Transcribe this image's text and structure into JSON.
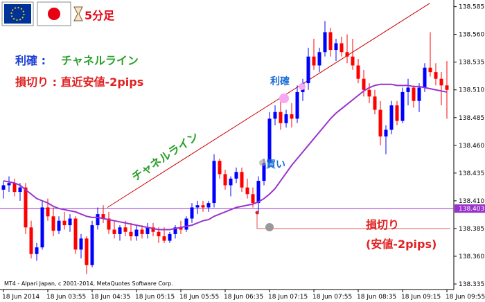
{
  "header": {
    "timeframe": "5分足"
  },
  "chart_data": {
    "type": "candlestick",
    "categories": [
      "18 Jun 2014",
      null,
      null,
      null,
      null,
      null,
      null,
      null,
      "18 Jun 03:55",
      null,
      null,
      null,
      null,
      null,
      null,
      null,
      "18 Jun 04:35",
      null,
      null,
      null,
      null,
      null,
      null,
      null,
      "18 Jun 05:15",
      null,
      null,
      null,
      null,
      null,
      null,
      null,
      "18 Jun 05:55",
      null,
      null,
      null,
      null,
      null,
      null,
      null,
      "18 Jun 06:35",
      null,
      null,
      null,
      null,
      null,
      null,
      null,
      "18 Jun 07:15",
      null,
      null,
      null,
      null,
      null,
      null,
      null,
      "18 Jun 07:55",
      null,
      null,
      null,
      null,
      null,
      null,
      null,
      "18 Jun 08:35",
      null,
      null,
      null,
      null,
      null,
      null,
      null,
      "18 Jun 09:15",
      null,
      null,
      null,
      null,
      null,
      null,
      null,
      "18 Jun 09:55"
    ],
    "open": [
      138.42,
      138.424,
      138.426,
      138.418,
      138.422,
      138.386,
      138.362,
      138.368,
      138.404,
      138.396,
      138.383,
      138.392,
      138.388,
      138.394,
      138.366,
      138.376,
      138.352,
      138.388,
      138.398,
      138.394,
      138.384,
      138.38,
      138.386,
      138.382,
      138.378,
      138.384,
      138.38,
      138.386,
      138.382,
      138.378,
      138.374,
      138.38,
      138.386,
      138.384,
      138.394,
      138.404,
      138.406,
      138.404,
      138.408,
      138.446,
      138.434,
      138.424,
      138.43,
      138.436,
      138.422,
      138.416,
      138.408,
      138.428,
      138.444,
      138.484,
      138.49,
      138.48,
      138.488,
      138.484,
      138.508,
      138.516,
      138.54,
      138.532,
      138.544,
      138.562,
      138.546,
      138.552,
      138.544,
      138.54,
      138.532,
      138.52,
      138.51,
      138.504,
      138.492,
      138.468,
      138.474,
      138.496,
      138.482,
      138.508,
      138.512,
      138.5,
      138.512,
      138.53,
      138.526,
      138.52,
      138.514
    ],
    "high": [
      138.428,
      138.432,
      138.43,
      138.426,
      138.426,
      138.392,
      138.372,
      138.41,
      138.412,
      138.404,
      138.396,
      138.4,
      138.398,
      138.396,
      138.38,
      138.378,
      138.392,
      138.404,
      138.406,
      138.4,
      138.392,
      138.388,
      138.392,
      138.39,
      138.388,
      138.388,
      138.39,
      138.39,
      138.386,
      138.386,
      138.382,
      138.388,
      138.392,
      138.396,
      138.408,
      138.41,
      138.41,
      138.41,
      138.452,
      138.448,
      138.438,
      138.432,
      138.44,
      138.44,
      138.43,
      138.422,
      138.432,
      138.448,
      138.49,
      138.496,
      138.5,
      138.492,
      138.498,
      138.514,
      138.52,
      138.548,
      138.556,
      138.548,
      138.572,
      138.566,
      138.556,
      138.558,
      138.56,
      138.556,
      138.538,
      138.528,
      138.516,
      138.51,
      138.5,
      138.478,
      138.5,
      138.5,
      138.512,
      138.52,
      138.514,
      138.516,
      138.534,
      138.562,
      138.534,
      138.526,
      138.536
    ],
    "low": [
      138.412,
      138.418,
      138.414,
      138.41,
      138.38,
      138.358,
      138.356,
      138.366,
      138.392,
      138.378,
      138.38,
      138.384,
      138.382,
      138.362,
      138.358,
      138.344,
      138.35,
      138.384,
      138.39,
      138.38,
      138.376,
      138.374,
      138.378,
      138.374,
      138.374,
      138.376,
      138.376,
      138.378,
      138.372,
      138.372,
      138.372,
      138.376,
      138.38,
      138.382,
      138.39,
      138.398,
      138.4,
      138.4,
      138.404,
      138.43,
      138.42,
      138.414,
      138.426,
      138.418,
      138.412,
      138.404,
      138.398,
      138.424,
      138.44,
      138.478,
      138.474,
      138.476,
      138.476,
      138.48,
      138.5,
      138.51,
      138.528,
      138.526,
      138.54,
      138.54,
      138.536,
      138.54,
      138.534,
      138.528,
      138.516,
      138.504,
      138.498,
      138.488,
      138.46,
      138.452,
      138.47,
      138.478,
      138.48,
      138.496,
      138.494,
      138.49,
      138.508,
      138.522,
      138.514,
      138.496,
      138.484
    ],
    "close": [
      138.424,
      138.426,
      138.418,
      138.422,
      138.386,
      138.362,
      138.368,
      138.404,
      138.396,
      138.383,
      138.392,
      138.388,
      138.394,
      138.366,
      138.376,
      138.352,
      138.388,
      138.398,
      138.394,
      138.384,
      138.38,
      138.386,
      138.382,
      138.378,
      138.384,
      138.38,
      138.386,
      138.382,
      138.378,
      138.374,
      138.38,
      138.386,
      138.384,
      138.394,
      138.404,
      138.406,
      138.404,
      138.408,
      138.446,
      138.434,
      138.424,
      138.43,
      138.436,
      138.422,
      138.416,
      138.408,
      138.428,
      138.444,
      138.484,
      138.49,
      138.48,
      138.488,
      138.484,
      138.508,
      138.516,
      138.54,
      138.532,
      138.544,
      138.562,
      138.546,
      138.552,
      138.544,
      138.54,
      138.532,
      138.52,
      138.51,
      138.504,
      138.492,
      138.468,
      138.474,
      138.496,
      138.482,
      138.508,
      138.512,
      138.5,
      138.512,
      138.53,
      138.526,
      138.52,
      138.514,
      138.51
    ],
    "up_color": "#0000ff",
    "down_color": "#ff0000",
    "ma": {
      "color": "#9933cc",
      "values": [
        138.428,
        138.427,
        138.426,
        138.424,
        138.42,
        138.416,
        138.412,
        138.41,
        138.408,
        138.405,
        138.403,
        138.402,
        138.401,
        138.4,
        138.398,
        138.396,
        138.395,
        138.395,
        138.394,
        138.393,
        138.392,
        138.391,
        138.39,
        138.389,
        138.388,
        138.387,
        138.386,
        138.385,
        138.384,
        138.384,
        138.384,
        138.385,
        138.386,
        138.387,
        138.388,
        138.39,
        138.392,
        138.393,
        138.396,
        138.398,
        138.4,
        138.402,
        138.404,
        138.405,
        138.406,
        138.407,
        138.409,
        138.412,
        138.416,
        138.421,
        138.428,
        138.435,
        138.442,
        138.448,
        138.454,
        138.46,
        138.466,
        138.472,
        138.478,
        138.484,
        138.489,
        138.493,
        138.497,
        138.501,
        138.505,
        138.509,
        138.512,
        138.514,
        138.515,
        138.515,
        138.515,
        138.514,
        138.514,
        138.514,
        138.513,
        138.513,
        138.512,
        138.511,
        138.51,
        138.509,
        138.508
      ]
    },
    "hline": 138.403,
    "hline_color": "#9933cc",
    "channel_line": {
      "x": [
        18.75,
        76.9
      ],
      "y": [
        138.404,
        138.588
      ],
      "color": "#cc0000"
    },
    "ylim": [
      138.33,
      138.591
    ],
    "yticks": [
      {
        "value": 138.335,
        "label": "138.335"
      },
      {
        "value": 138.36,
        "label": "138.360"
      },
      138.385,
      {
        "value": 138.41,
        "label": "138.410"
      },
      138.435,
      {
        "value": 138.46,
        "label": "138.460"
      },
      138.485,
      {
        "value": 138.51,
        "label": "138.510"
      },
      138.535,
      {
        "value": 138.56,
        "label": "138.560"
      },
      138.585
    ],
    "annotations": {
      "take_profit_label": "利確 :",
      "take_profit_rule": "チャネルライン",
      "stop_rule": "損切り : 直近安値-2pips",
      "channel_label": "チャネルライン",
      "tp_marker": "利確",
      "buy_marker": "買い",
      "sl_label": "損切り",
      "sl_detail": "(安値-2pips)"
    },
    "footer": "MT4 - Alpari Japan, c 2001-2014, MetaQuotes Software Corp."
  }
}
